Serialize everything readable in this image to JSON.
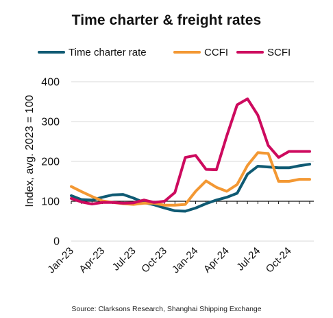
{
  "chart_data": {
    "type": "line",
    "title": "Time charter & freight rates",
    "ylabel": "Index, avg. 2023 = 100",
    "xlabel": "",
    "ylim": [
      0,
      400
    ],
    "yticks": [
      0,
      100,
      200,
      300,
      400
    ],
    "x": [
      "Jan-23",
      "Feb-23",
      "Mar-23",
      "Apr-23",
      "May-23",
      "Jun-23",
      "Jul-23",
      "Aug-23",
      "Sep-23",
      "Oct-23",
      "Nov-23",
      "Dec-23",
      "Jan-24",
      "Feb-24",
      "Mar-24",
      "Apr-24",
      "May-24",
      "Jun-24",
      "Jul-24",
      "Aug-24",
      "Sep-24",
      "Oct-24",
      "Nov-24",
      "Dec-24"
    ],
    "xtick_labels": [
      "Jan-23",
      "Apr-23",
      "Jul-23",
      "Oct-23",
      "Jan-24",
      "Apr-24",
      "Jul-24",
      "Oct-24"
    ],
    "xtick_indices": [
      0,
      3,
      6,
      9,
      12,
      15,
      18,
      21
    ],
    "grid": "horizontal",
    "legend_position": "top",
    "series": [
      {
        "name": "Time charter rate",
        "color": "#0f5a73",
        "values": [
          114,
          104,
          103,
          110,
          116,
          117,
          108,
          97,
          91,
          83,
          76,
          75,
          83,
          94,
          103,
          110,
          120,
          168,
          188,
          186,
          184,
          184,
          189,
          193
        ]
      },
      {
        "name": "CCFI",
        "color": "#f39833",
        "values": [
          137,
          124,
          112,
          101,
          97,
          94,
          92,
          95,
          95,
          90,
          90,
          92,
          125,
          151,
          135,
          125,
          142,
          190,
          222,
          220,
          150,
          150,
          155,
          155
        ]
      },
      {
        "name": "SCFI",
        "color": "#cd0a5e",
        "values": [
          107,
          98,
          93,
          97,
          97,
          95,
          96,
          103,
          97,
          100,
          122,
          210,
          215,
          180,
          179,
          264,
          342,
          357,
          316,
          240,
          210,
          225,
          225,
          225
        ]
      }
    ],
    "source": "Source: Clarksons Research, Shanghai Shipping Exchange"
  }
}
